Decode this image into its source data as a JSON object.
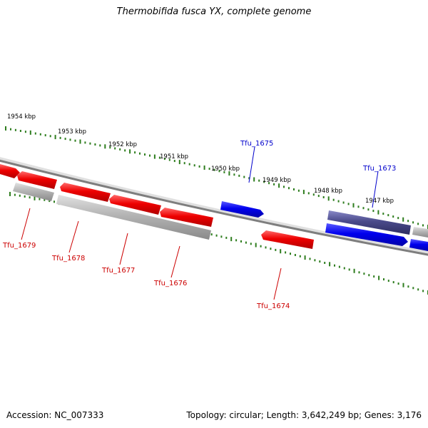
{
  "title": "Thermobifida fusca YX, complete genome",
  "footer": {
    "accession": "Accession: NC_007333",
    "summary": "Topology: circular; Length: 3,642,249 bp; Genes: 3,176"
  },
  "colors": {
    "backbone": "#808080",
    "tick": "#2e7d1e",
    "forward_gene": "#0000ee",
    "reverse_gene": "#ee0000",
    "pseudo_gene": "#aaaaaa",
    "highlight_gene": "#4a4a8a",
    "forward_label": "#0000cc",
    "reverse_label": "#cc0000"
  },
  "scale_labels": [
    "1954 kbp",
    "1953 kbp",
    "1952 kbp",
    "1951 kbp",
    "1950 kbp",
    "1949 kbp",
    "1948 kbp",
    "1947 kbp"
  ],
  "gene_labels": {
    "forward": [
      "Tfu_1675",
      "Tfu_1673"
    ],
    "reverse": [
      "Tfu_1679",
      "Tfu_1678",
      "Tfu_1677",
      "Tfu_1676",
      "Tfu_1674"
    ]
  }
}
